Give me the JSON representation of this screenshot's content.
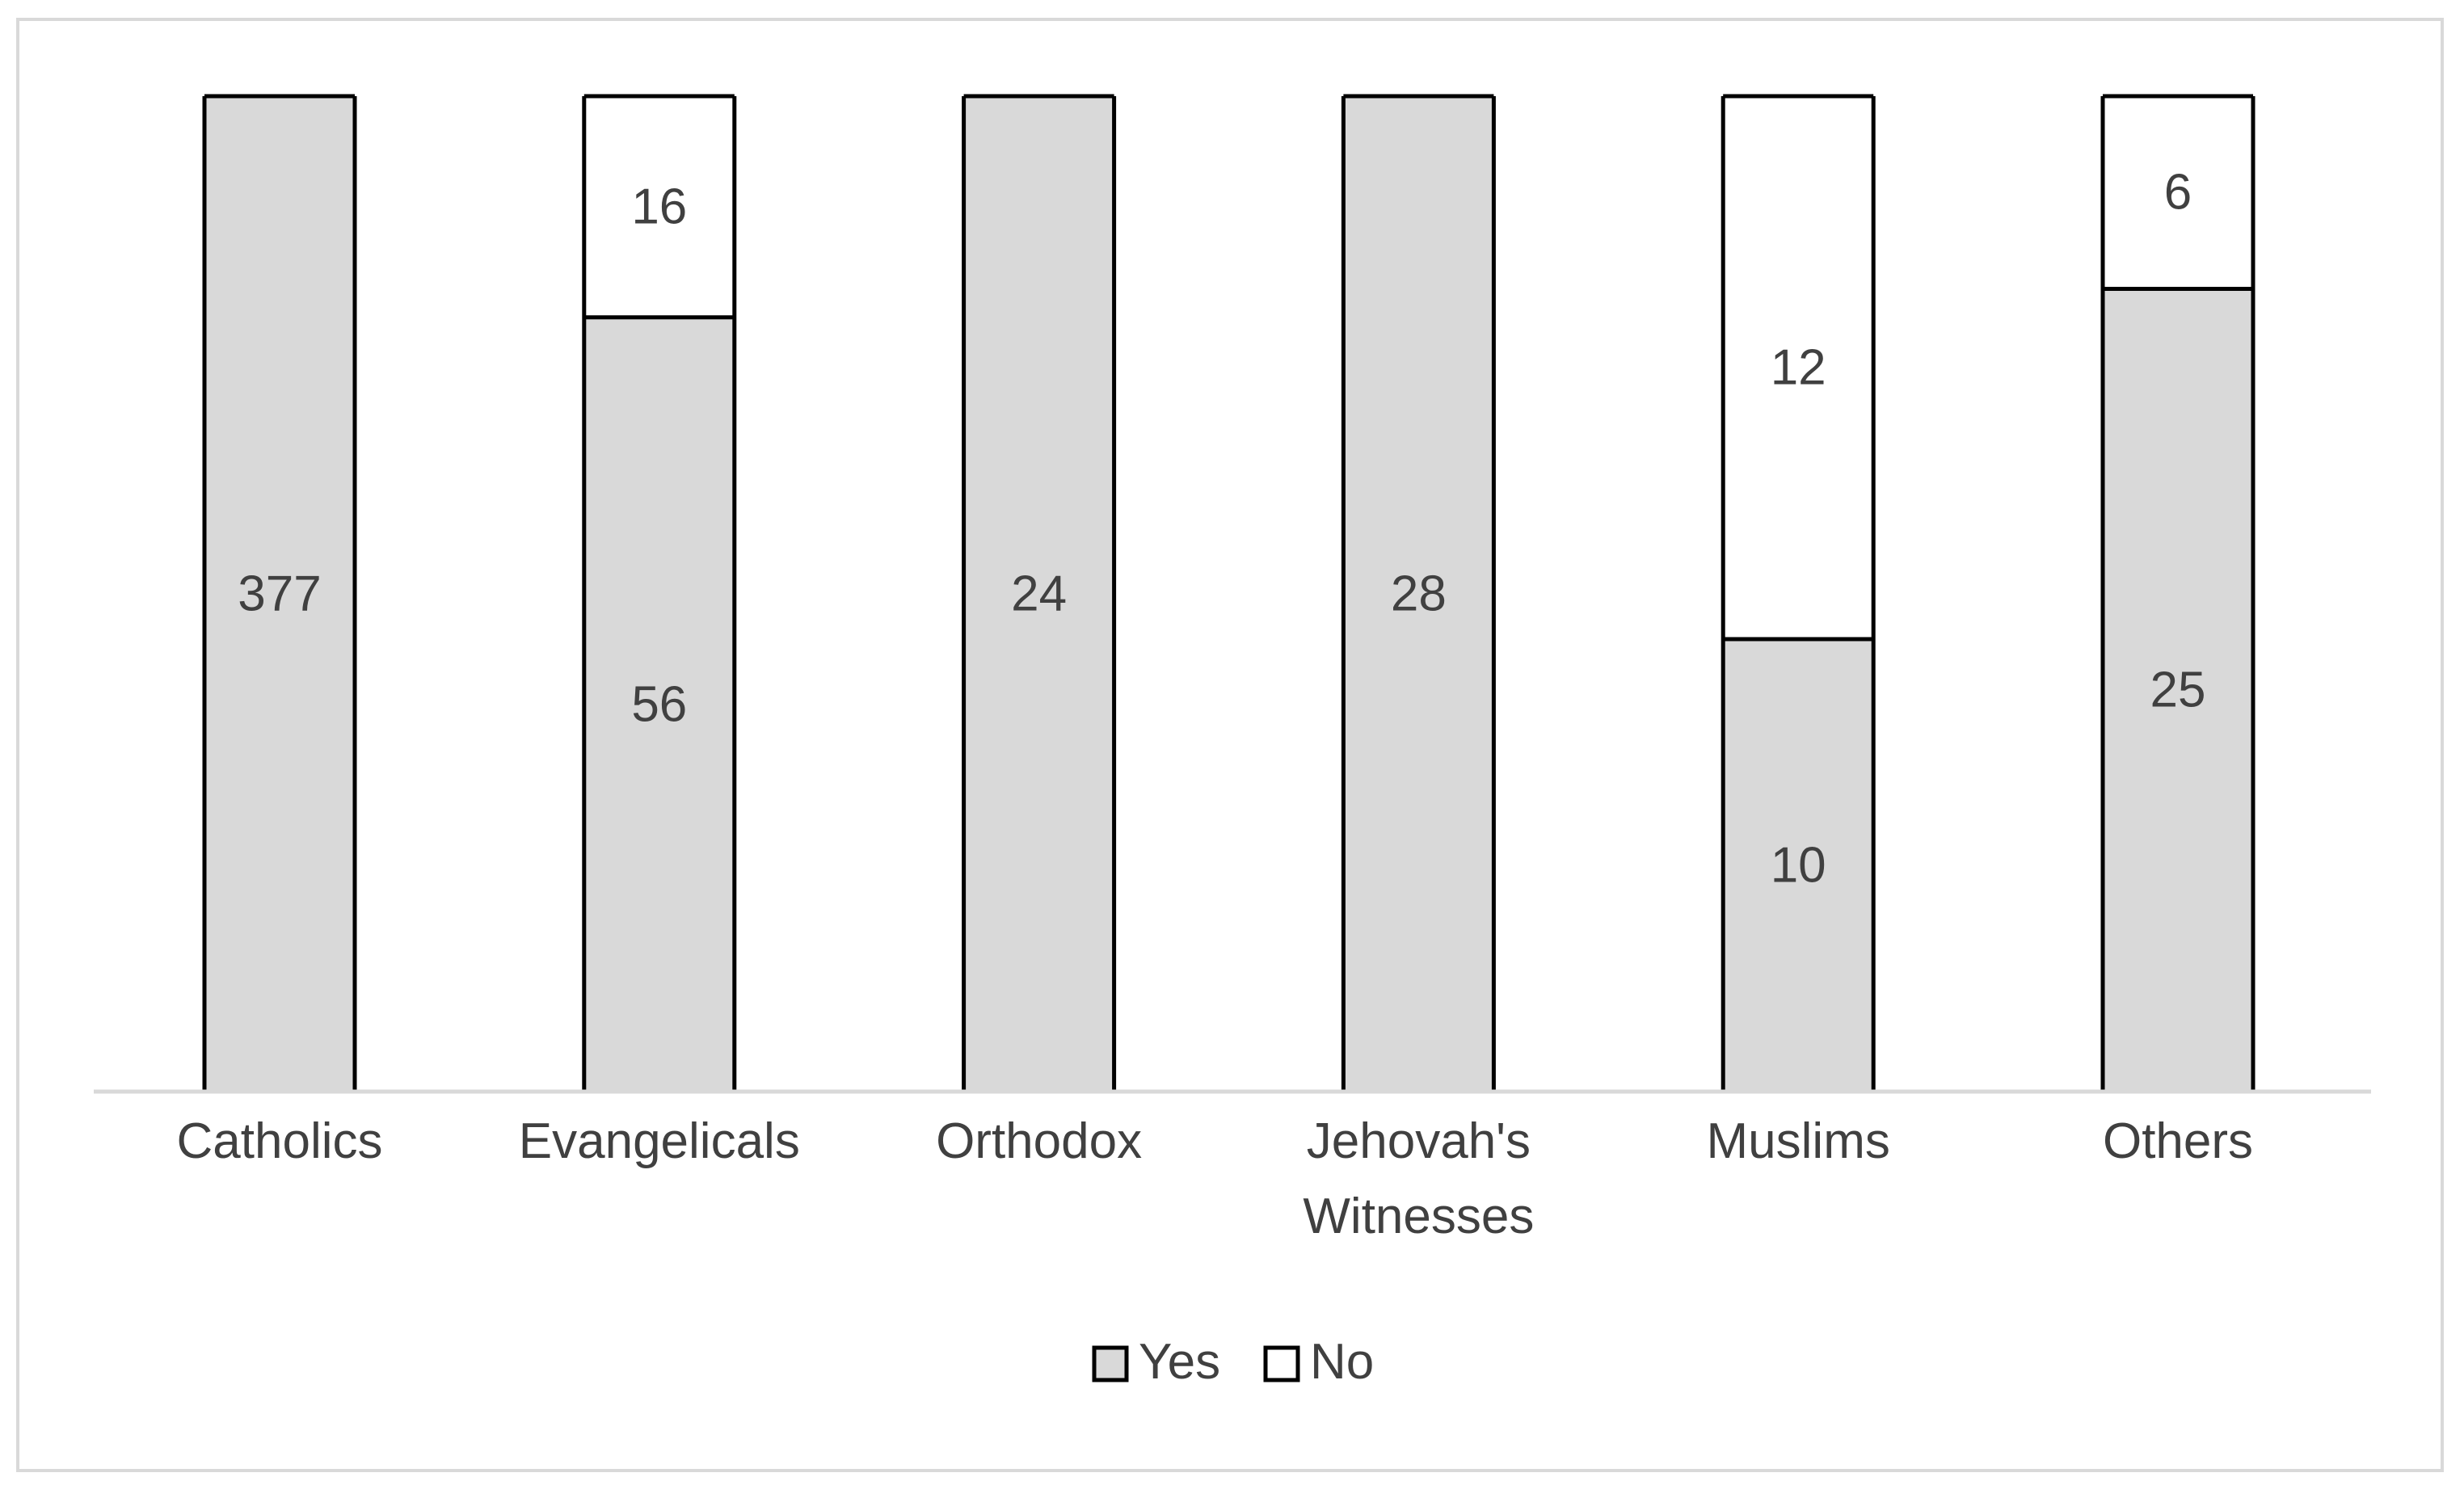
{
  "chart_data": {
    "type": "bar",
    "stacked": true,
    "normalized": true,
    "categories": [
      "Catholics",
      "Evangelicals",
      "Orthodox",
      "Jehovah's Witnesses",
      "Muslims",
      "Others"
    ],
    "category_lines": [
      [
        "Catholics"
      ],
      [
        "Evangelicals"
      ],
      [
        "Orthodox"
      ],
      [
        "Jehovah's",
        "Witnesses"
      ],
      [
        "Muslims"
      ],
      [
        "Others"
      ]
    ],
    "series": [
      {
        "name": "Yes",
        "values": [
          377,
          56,
          24,
          28,
          10,
          25
        ],
        "color": "#d9d9d9"
      },
      {
        "name": "No",
        "values": [
          0,
          16,
          0,
          0,
          12,
          6
        ],
        "color": "#ffffff"
      }
    ],
    "legend_position": "bottom",
    "grid": false,
    "bar_outline_color": "#000000",
    "axis_color": "#d9d9d9"
  }
}
